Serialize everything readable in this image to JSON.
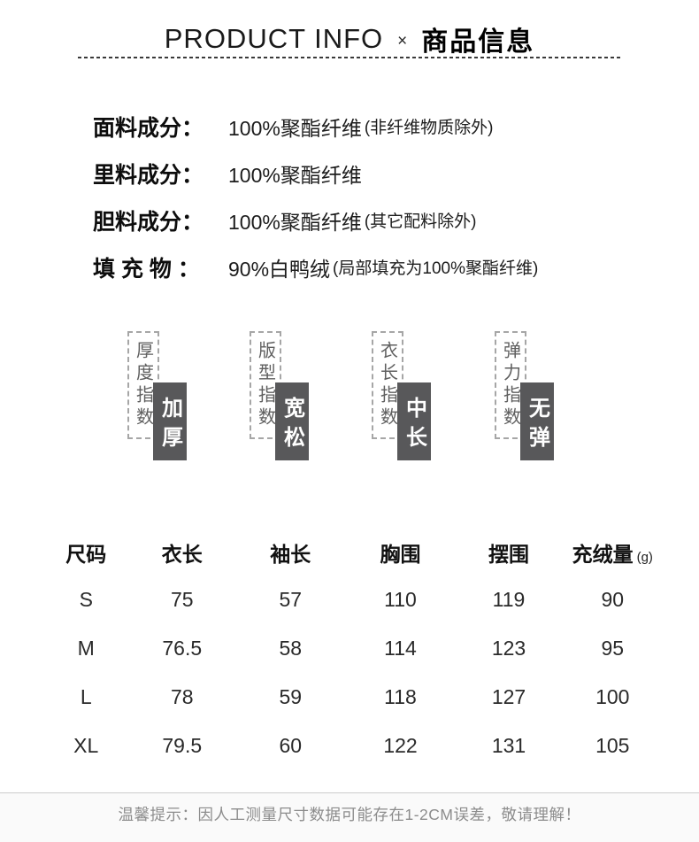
{
  "header": {
    "title_en": "PRODUCT INFO",
    "separator": "×",
    "title_zh": "商品信息"
  },
  "composition": {
    "rows": [
      {
        "label": "面料成分：",
        "value": "100%聚酯纤维",
        "note": "(非纤维物质除外)"
      },
      {
        "label": "里料成分：",
        "value": "100%聚酯纤维",
        "note": ""
      },
      {
        "label": "胆料成分：",
        "value": "100%聚酯纤维",
        "note": "(其它配料除外)"
      },
      {
        "label": "填 充 物 ：",
        "value": "90%白鸭绒",
        "note": "(局部填充为100%聚酯纤维)"
      }
    ]
  },
  "indicators": [
    {
      "index_label": "厚度指数",
      "value_label": "加厚"
    },
    {
      "index_label": "版型指数",
      "value_label": "宽松"
    },
    {
      "index_label": "衣长指数",
      "value_label": "中长"
    },
    {
      "index_label": "弹力指数",
      "value_label": "无弹"
    }
  ],
  "size_table": {
    "headers": [
      "尺码",
      "衣长",
      "袖长",
      "胸围",
      "摆围",
      "充绒量"
    ],
    "unit_suffix": "(g)",
    "rows": [
      [
        "S",
        "75",
        "57",
        "110",
        "119",
        "90"
      ],
      [
        "M",
        "76.5",
        "58",
        "114",
        "123",
        "95"
      ],
      [
        "L",
        "78",
        "59",
        "118",
        "127",
        "100"
      ],
      [
        "XL",
        "79.5",
        "60",
        "122",
        "131",
        "105"
      ]
    ]
  },
  "footer": {
    "notice": "温馨提示：因人工测量尺寸数据可能存在1-2CM误差，敬请理解！"
  },
  "colors": {
    "accent_dark": "#58585a",
    "text_primary": "#111111",
    "text_muted": "#5f5f5f",
    "footer_text": "#8c8c8c"
  }
}
